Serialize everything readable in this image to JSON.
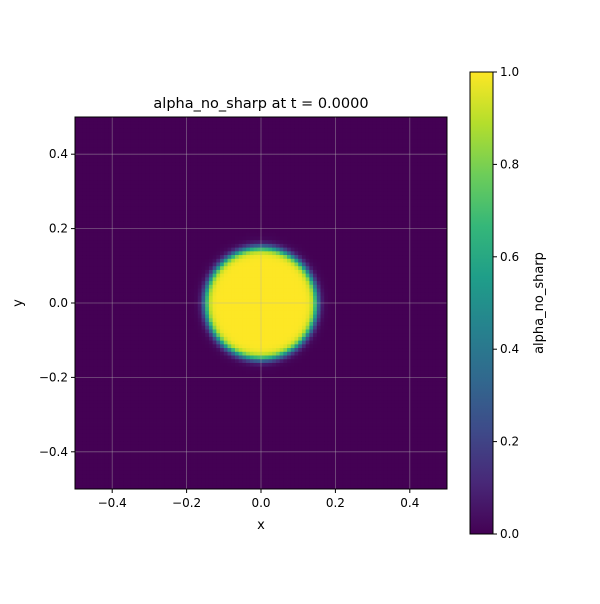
{
  "chart_data": {
    "type": "heatmap",
    "title": "alpha_no_sharp at t = 0.0000",
    "xlabel": "x",
    "ylabel": "y",
    "xlim": [
      -0.5,
      0.5
    ],
    "ylim": [
      -0.5,
      0.5
    ],
    "xticks": [
      "−0.4",
      "−0.2",
      "0.0",
      "0.2",
      "0.4"
    ],
    "yticks": [
      "−0.4",
      "−0.2",
      "0.0",
      "0.2",
      "0.4"
    ],
    "xtick_values": [
      -0.4,
      -0.2,
      0.0,
      0.2,
      0.4
    ],
    "ytick_values": [
      -0.4,
      -0.2,
      0.0,
      0.2,
      0.4
    ],
    "grid": true,
    "field": {
      "resolution": [
        100,
        100
      ],
      "center": [
        0,
        0
      ],
      "radius": 0.15,
      "interface_width": 0.012,
      "inside_value": 1.0,
      "outside_value": 0.0
    },
    "colormap": "viridis",
    "colorbar": {
      "label": "alpha_no_sharp",
      "range": [
        0,
        1
      ],
      "ticks": [
        "0.0",
        "0.2",
        "0.4",
        "0.6",
        "0.8",
        "1.0"
      ],
      "tick_values": [
        0,
        0.2,
        0.4,
        0.6,
        0.8,
        1.0
      ],
      "placement": "right"
    }
  }
}
